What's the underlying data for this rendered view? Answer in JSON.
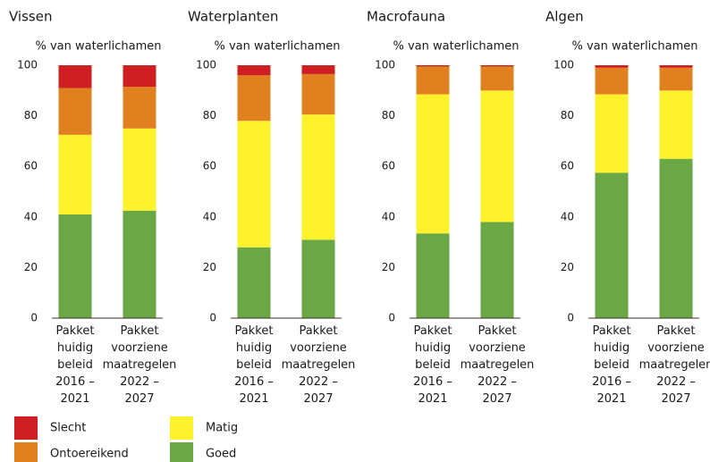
{
  "chart_data": [
    {
      "type": "bar",
      "stacked": true,
      "title": "Vissen",
      "ylabel": "% van waterlichamen",
      "categories": [
        "Pakket\nhuidig\nbeleid\n2016 –\n2021",
        "Pakket\nvoorziene\nmaatregelen\n2022 –\n2027"
      ],
      "series": [
        {
          "name": "Goed",
          "color": "#6aa843",
          "values": [
            41,
            42.5
          ]
        },
        {
          "name": "Matig",
          "color": "#fff12c",
          "values": [
            31.5,
            32.5
          ]
        },
        {
          "name": "Ontoereikend",
          "color": "#e0801f",
          "values": [
            18.5,
            16.5
          ]
        },
        {
          "name": "Slecht",
          "color": "#cf1f22",
          "values": [
            9,
            8.5
          ]
        }
      ],
      "ylim": [
        0,
        100
      ],
      "yticks": [
        0,
        20,
        40,
        60,
        80,
        100
      ]
    },
    {
      "type": "bar",
      "stacked": true,
      "title": "Waterplanten",
      "ylabel": "% van waterlichamen",
      "categories": [
        "Pakket\nhuidig\nbeleid\n2016 –\n2021",
        "Pakket\nvoorziene\nmaatregelen\n2022 –\n2027"
      ],
      "series": [
        {
          "name": "Goed",
          "color": "#6aa843",
          "values": [
            28,
            31
          ]
        },
        {
          "name": "Matig",
          "color": "#fff12c",
          "values": [
            50,
            49.5
          ]
        },
        {
          "name": "Ontoereikend",
          "color": "#e0801f",
          "values": [
            18,
            16
          ]
        },
        {
          "name": "Slecht",
          "color": "#cf1f22",
          "values": [
            4,
            3.5
          ]
        }
      ],
      "ylim": [
        0,
        100
      ],
      "yticks": [
        0,
        20,
        40,
        60,
        80,
        100
      ]
    },
    {
      "type": "bar",
      "stacked": true,
      "title": "Macrofauna",
      "ylabel": "% van waterlichamen",
      "categories": [
        "Pakket\nhuidig\nbeleid\n2016 –\n2021",
        "Pakket\nvoorziene\nmaatregelen\n2022 –\n2027"
      ],
      "series": [
        {
          "name": "Goed",
          "color": "#6aa843",
          "values": [
            33.5,
            38
          ]
        },
        {
          "name": "Matig",
          "color": "#fff12c",
          "values": [
            55,
            52
          ]
        },
        {
          "name": "Ontoereikend",
          "color": "#e0801f",
          "values": [
            11,
            9.5
          ]
        },
        {
          "name": "Slecht",
          "color": "#cf1f22",
          "values": [
            0.5,
            0.5
          ]
        }
      ],
      "ylim": [
        0,
        100
      ],
      "yticks": [
        0,
        20,
        40,
        60,
        80,
        100
      ]
    },
    {
      "type": "bar",
      "stacked": true,
      "title": "Algen",
      "ylabel": "% van waterlichamen",
      "categories": [
        "Pakket\nhuidig\nbeleid\n2016 –\n2021",
        "Pakket\nvoorziene\nmaatregelen\n2022 –\n2027"
      ],
      "series": [
        {
          "name": "Goed",
          "color": "#6aa843",
          "values": [
            57.5,
            63
          ]
        },
        {
          "name": "Matig",
          "color": "#fff12c",
          "values": [
            31,
            27
          ]
        },
        {
          "name": "Ontoereikend",
          "color": "#e0801f",
          "values": [
            10.5,
            9
          ]
        },
        {
          "name": "Slecht",
          "color": "#cf1f22",
          "values": [
            1,
            1
          ]
        }
      ],
      "ylim": [
        0,
        100
      ],
      "yticks": [
        0,
        20,
        40,
        60,
        80,
        100
      ]
    }
  ]
}
